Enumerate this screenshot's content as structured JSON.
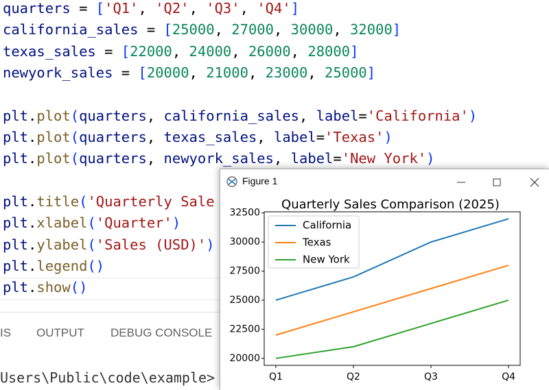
{
  "editor": {
    "code_blocks": [
      [
        "quarters = ['Q1', 'Q2', 'Q3', 'Q4']",
        "california_sales = [25000, 27000, 30000, 32000]",
        "texas_sales = [22000, 24000, 26000, 28000]",
        "newyork_sales = [20000, 21000, 23000, 25000]"
      ],
      [
        "plt.plot(quarters, california_sales, label='California')",
        "plt.plot(quarters, texas_sales, label='Texas')",
        "plt.plot(quarters, newyork_sales, label='New York')"
      ],
      [
        "plt.title('Quarterly Sale",
        "plt.xlabel('Quarter')",
        "plt.ylabel('Sales (USD)')",
        "plt.legend()",
        "plt.show()"
      ]
    ]
  },
  "panel": {
    "tabs": [
      "IS",
      "OUTPUT",
      "DEBUG CONSOLE"
    ],
    "terminal_prompt": "Users\\Public\\code\\example>"
  },
  "figure_window": {
    "title": "Figure 1",
    "chart_data": {
      "type": "line",
      "title": "Quarterly Sales Comparison (2025)",
      "categories": [
        "Q1",
        "Q2",
        "Q3",
        "Q4"
      ],
      "series": [
        {
          "name": "California",
          "color": "#1f77b4",
          "values": [
            25000,
            27000,
            30000,
            32000
          ]
        },
        {
          "name": "Texas",
          "color": "#ff7f0e",
          "values": [
            22000,
            24000,
            26000,
            28000
          ]
        },
        {
          "name": "New York",
          "color": "#2ca02c",
          "values": [
            20000,
            21000,
            23000,
            25000
          ]
        }
      ],
      "ylim": [
        19400,
        32600
      ],
      "yticks": [
        20000,
        22500,
        25000,
        27500,
        30000,
        32500
      ],
      "legend": "upper left",
      "grid": false
    }
  }
}
